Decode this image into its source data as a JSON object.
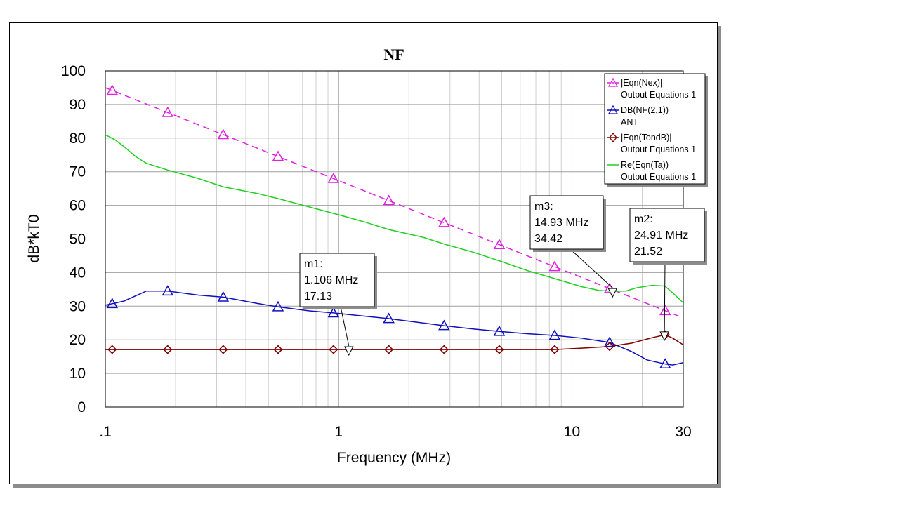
{
  "chart_data": {
    "type": "line",
    "title": "NF",
    "xlabel": "Frequency (MHz)",
    "ylabel": "dB*kT0",
    "x_scale": "log",
    "xlim": [
      0.1,
      30
    ],
    "ylim": [
      0,
      100
    ],
    "x_ticks": [
      {
        "v": 0.1,
        "label": ".1"
      },
      {
        "v": 1,
        "label": "1"
      },
      {
        "v": 10,
        "label": "10"
      },
      {
        "v": 30,
        "label": "30"
      }
    ],
    "y_ticks": [
      0,
      10,
      20,
      30,
      40,
      50,
      60,
      70,
      80,
      90,
      100
    ],
    "grid": true,
    "legend_position": "top-right",
    "series": [
      {
        "name": "|Eqn(Nex)|",
        "source": "Output Equations 1",
        "color": "#e020e0",
        "dash": true,
        "marker": "triangle",
        "points": [
          [
            0.1,
            95
          ],
          [
            30,
            26.5
          ]
        ],
        "marker_x": [
          0.107,
          0.185,
          0.32,
          0.55,
          0.95,
          1.64,
          2.83,
          4.88,
          8.43,
          14.5,
          25.1
        ]
      },
      {
        "name": "DB(NF(2,1))",
        "source": "ANT",
        "color": "#1010c0",
        "dash": false,
        "marker": "triangle",
        "points": [
          [
            0.1,
            30.3
          ],
          [
            0.12,
            31.5
          ],
          [
            0.15,
            34.5
          ],
          [
            0.185,
            34.5
          ],
          [
            0.25,
            33.3
          ],
          [
            0.32,
            32.7
          ],
          [
            0.45,
            30.8
          ],
          [
            0.55,
            29.8
          ],
          [
            0.75,
            28.6
          ],
          [
            0.95,
            28
          ],
          [
            1.3,
            27
          ],
          [
            1.64,
            26.3
          ],
          [
            2.3,
            25
          ],
          [
            2.83,
            24.2
          ],
          [
            3.8,
            23.2
          ],
          [
            4.88,
            22.5
          ],
          [
            6.5,
            21.8
          ],
          [
            8.43,
            21.3
          ],
          [
            11,
            20.5
          ],
          [
            14.5,
            19.2
          ],
          [
            18,
            16.5
          ],
          [
            21,
            14
          ],
          [
            25.1,
            12.8
          ],
          [
            27,
            12.5
          ],
          [
            30,
            13.2
          ]
        ],
        "marker_x": [
          0.107,
          0.185,
          0.32,
          0.55,
          0.95,
          1.64,
          2.83,
          4.88,
          8.43,
          14.5,
          25.1
        ]
      },
      {
        "name": "|Eqn(TondB)|",
        "source": "Output Equations 1",
        "color": "#800000",
        "dash": false,
        "marker": "diamond",
        "points": [
          [
            0.1,
            17.1
          ],
          [
            2,
            17.1
          ],
          [
            8.43,
            17.1
          ],
          [
            11,
            17.5
          ],
          [
            14.5,
            18
          ],
          [
            18,
            19
          ],
          [
            22,
            20.6
          ],
          [
            25.1,
            21.5
          ],
          [
            27,
            20.5
          ],
          [
            30,
            18.5
          ]
        ],
        "marker_x": [
          0.107,
          0.185,
          0.32,
          0.55,
          0.95,
          1.64,
          2.83,
          4.88,
          8.43,
          14.5,
          25.1
        ]
      },
      {
        "name": "Re(Eqn(Ta))",
        "source": "Output Equations 1",
        "color": "#20d020",
        "dash": false,
        "marker": "none",
        "points": [
          [
            0.1,
            81
          ],
          [
            0.11,
            79.5
          ],
          [
            0.12,
            77.5
          ],
          [
            0.135,
            74.5
          ],
          [
            0.15,
            72.5
          ],
          [
            0.185,
            70.5
          ],
          [
            0.25,
            68
          ],
          [
            0.32,
            65.5
          ],
          [
            0.45,
            63.5
          ],
          [
            0.55,
            62
          ],
          [
            0.75,
            59.5
          ],
          [
            1,
            57.2
          ],
          [
            1.3,
            55
          ],
          [
            1.64,
            52.8
          ],
          [
            2.3,
            50.5
          ],
          [
            2.83,
            48.5
          ],
          [
            3.8,
            46
          ],
          [
            4.88,
            43.5
          ],
          [
            6.5,
            40.5
          ],
          [
            8.43,
            38.2
          ],
          [
            11,
            35.8
          ],
          [
            13,
            34.7
          ],
          [
            14.93,
            34.42
          ],
          [
            17,
            34.5
          ],
          [
            19,
            35.5
          ],
          [
            22,
            36.2
          ],
          [
            25,
            36
          ],
          [
            27,
            34
          ],
          [
            30,
            31
          ]
        ],
        "marker_x": []
      }
    ],
    "markers": [
      {
        "label": "m1:",
        "x_text": "1.106 MHz",
        "y_text": "17.13",
        "x": 1.106,
        "y": 17.13
      },
      {
        "label": "m2:",
        "x_text": "24.91 MHz",
        "y_text": "21.52",
        "x": 24.91,
        "y": 21.52
      },
      {
        "label": "m3:",
        "x_text": "14.93 MHz",
        "y_text": "34.42",
        "x": 14.93,
        "y": 34.42
      }
    ]
  }
}
